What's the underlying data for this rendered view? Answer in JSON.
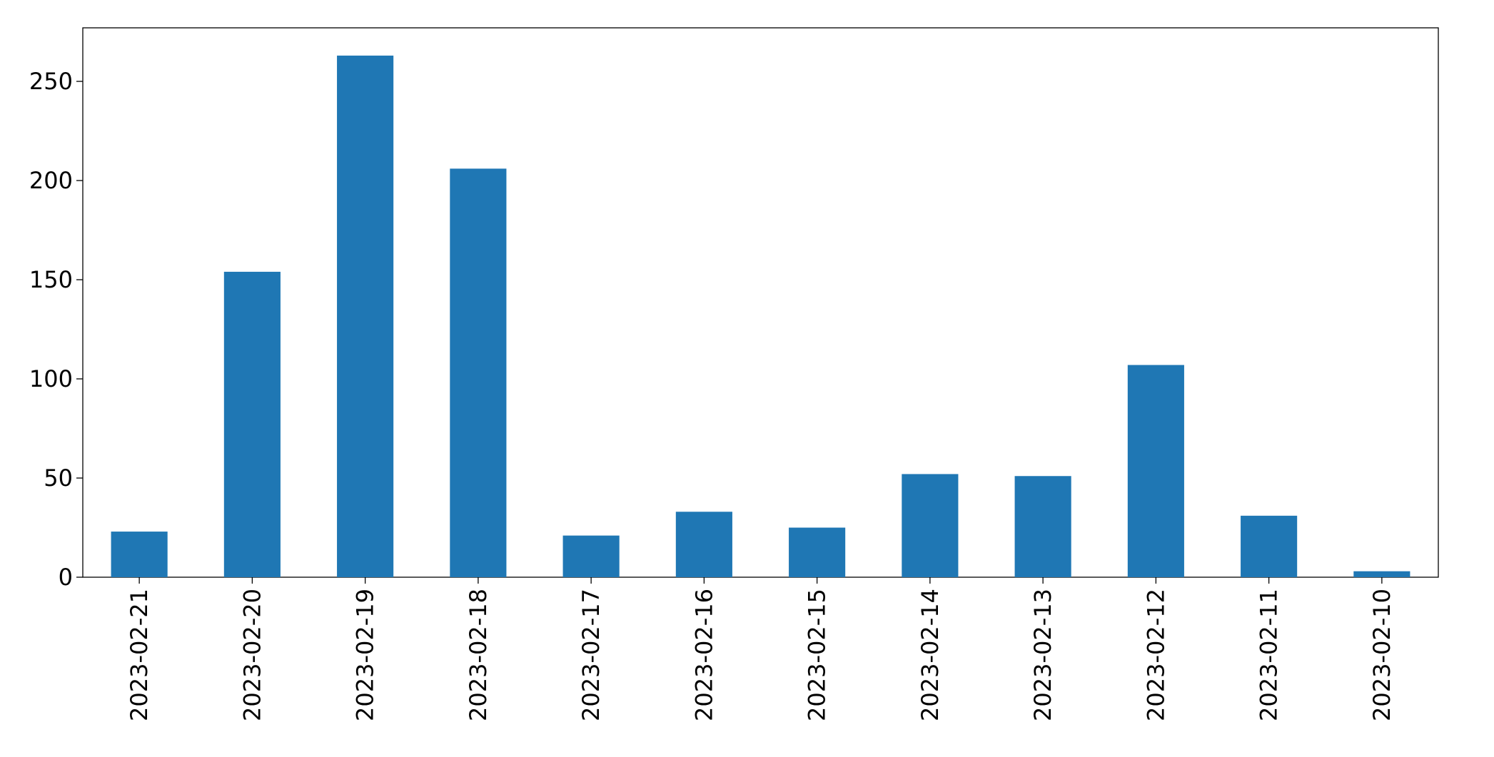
{
  "chart_data": {
    "type": "bar",
    "categories": [
      "2023-02-21",
      "2023-02-20",
      "2023-02-19",
      "2023-02-18",
      "2023-02-17",
      "2023-02-16",
      "2023-02-15",
      "2023-02-14",
      "2023-02-13",
      "2023-02-12",
      "2023-02-11",
      "2023-02-10"
    ],
    "values": [
      23,
      154,
      263,
      206,
      21,
      33,
      25,
      52,
      51,
      107,
      31,
      3
    ],
    "color": "#1f77b4",
    "ylim": [
      0,
      277
    ],
    "yticks": [
      0,
      50,
      100,
      150,
      200,
      250
    ],
    "grid": false
  }
}
